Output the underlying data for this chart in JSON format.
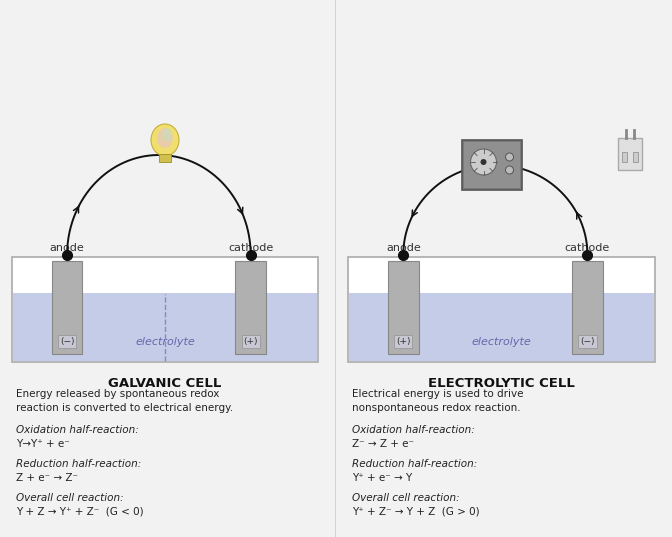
{
  "bg_color": "#f2f2f2",
  "white": "#ffffff",
  "electrolyte_color": "#c5cce8",
  "electrode_color": "#b0b0b0",
  "electrode_edge": "#888888",
  "tank_edge": "#aaaaaa",
  "wire_color": "#111111",
  "dot_color": "#111111",
  "text_color": "#222222",
  "label_color": "#333333",
  "elec_label_color": "#6666aa",
  "sign_bg": "#c8c8d4",
  "galvanic_title": "GALVANIC CELL",
  "electrolytic_title": "ELECTROLYTIC CELL",
  "galvanic_desc1": "Energy released by spontaneous redox",
  "galvanic_desc2": "reaction is converted to electrical energy.",
  "electrolytic_desc1": "Electrical energy is used to drive",
  "electrolytic_desc2": "nonspontaneous redox reaction.",
  "galvanic_ox_label": "Oxidation half-reaction:",
  "galvanic_ox_eq": "Y→Y⁺ + e⁻",
  "galvanic_red_label": "Reduction half-reaction:",
  "galvanic_red_eq": "Z + e⁻ → Z⁻",
  "galvanic_overall_label": "Overall cell reaction:",
  "galvanic_overall_eq": "Y + Z → Y⁺ + Z⁻  (G < 0)",
  "electrolytic_ox_label": "Oxidation half-reaction:",
  "electrolytic_ox_eq": "Z⁻ → Z + e⁻",
  "electrolytic_red_label": "Reduction half-reaction:",
  "electrolytic_red_eq": "Y⁺ + e⁻ → Y",
  "electrolytic_overall_label": "Overall cell reaction:",
  "electrolytic_overall_eq": "Y⁺ + Z⁻ → Y + Z  (G > 0)"
}
